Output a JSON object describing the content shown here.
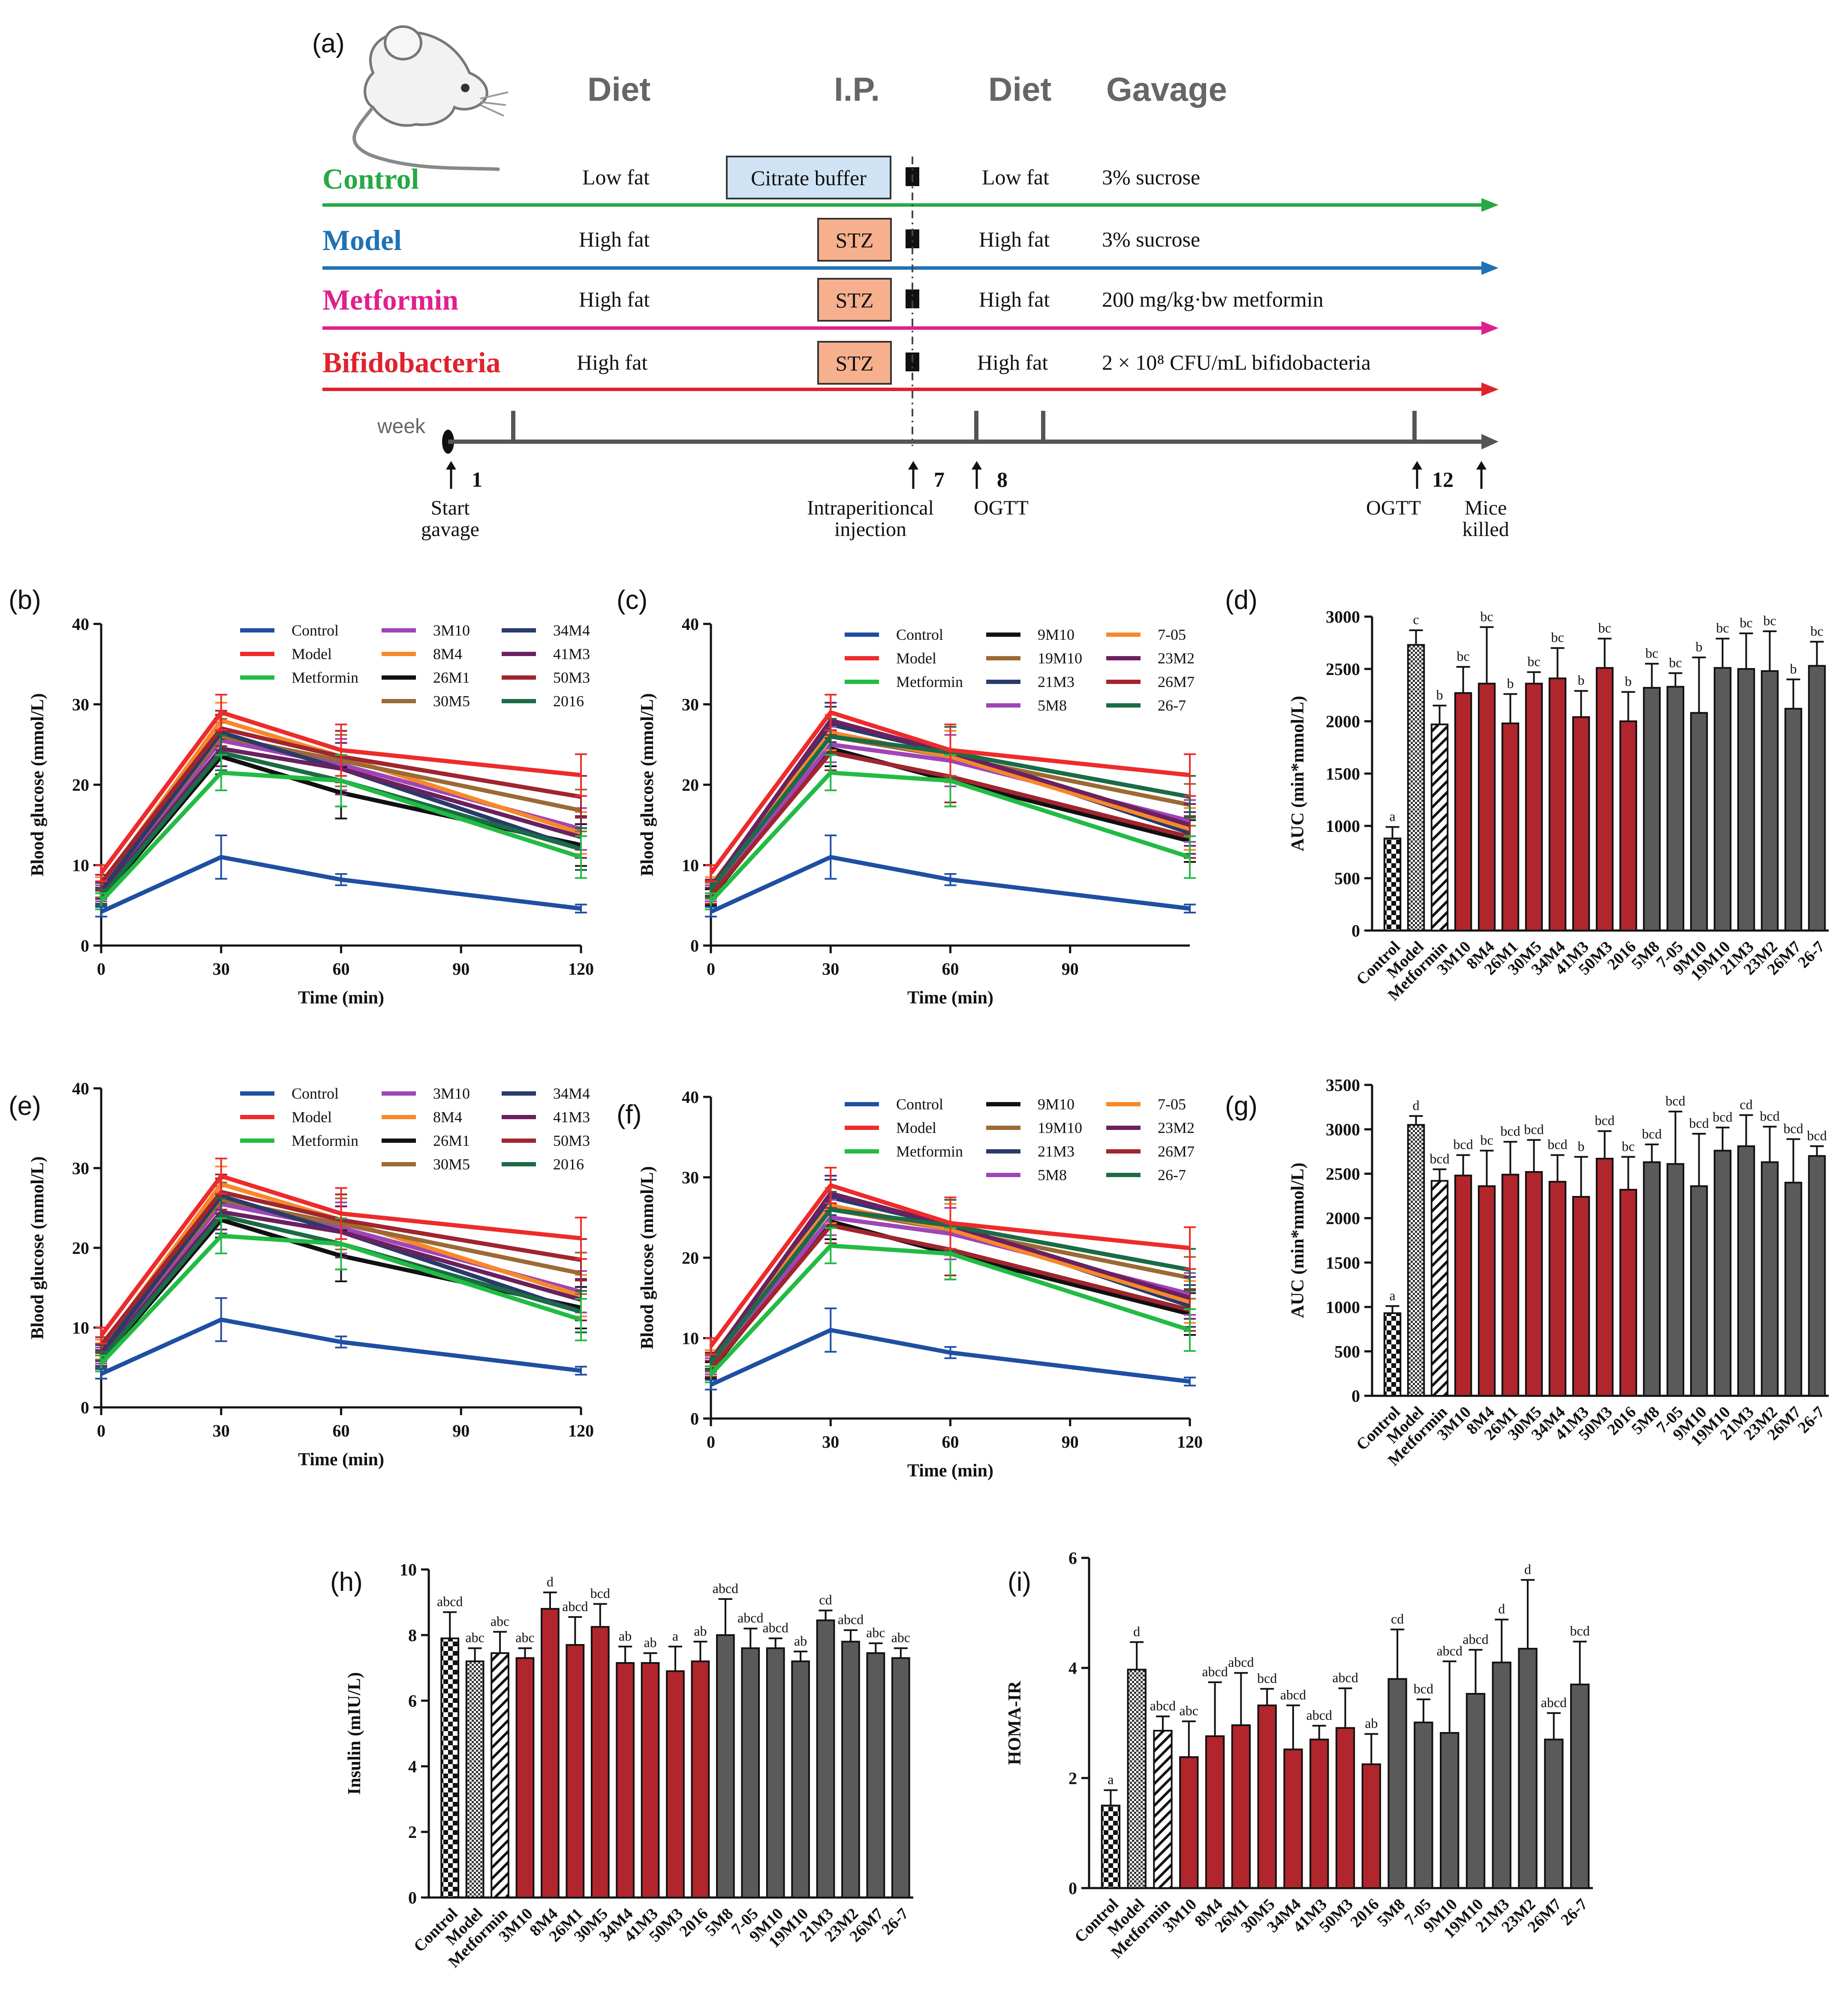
{
  "colors": {
    "control": "#1f4fa3",
    "model": "#ee2b2b",
    "metformin": "#22bb44",
    "bifido": "#e0222c",
    "model_row": "#1f72b5",
    "metformin_row": "#e0208e",
    "bar_red": "#b0262c",
    "bar_gray": "#5a5a5a",
    "stz": "#f7b08e",
    "citrate": "#cfe3f4"
  },
  "panel_a": {
    "label": "(a)",
    "headers": {
      "diet1": "Diet",
      "ip": "I.P.",
      "diet2": "Diet",
      "gavage": "Gavage"
    },
    "rows": [
      {
        "name": "Control",
        "diet1": "Low fat",
        "ip": "Citrate buffer",
        "diet2": "Low fat",
        "gavage": "3% sucrose"
      },
      {
        "name": "Model",
        "diet1": "High fat",
        "ip": "STZ",
        "diet2": "High fat",
        "gavage": "3% sucrose"
      },
      {
        "name": "Metformin",
        "diet1": "High fat",
        "ip": "STZ",
        "diet2": "High fat",
        "gavage": "200 mg/kg·bw metformin"
      },
      {
        "name": "Bifidobacteria",
        "diet1": "High fat",
        "ip": "STZ",
        "diet2": "High fat",
        "gavage": "2 × 10⁸ CFU/mL bifidobacteria"
      }
    ],
    "timeline": {
      "unit": "week",
      "marks": [
        {
          "num": "1",
          "label1": "Start",
          "label2": "gavage"
        },
        {
          "num": "7",
          "label1": "Intraperitioncal",
          "label2": "injection"
        },
        {
          "num": "8",
          "label1": "OGTT",
          "label2": ""
        },
        {
          "num": "12",
          "label1": "OGTT",
          "label2": ""
        },
        {
          "num": "",
          "label1": "Mice",
          "label2": "killed"
        }
      ]
    }
  },
  "chart_data": [
    {
      "panel": "(b)",
      "type": "line",
      "xlabel": "Time (min)",
      "ylabel": "Blood glucose (mmol/L)",
      "x": [
        0,
        30,
        60,
        120
      ],
      "xticks": [
        "0",
        "30",
        "60",
        "90",
        "120"
      ],
      "ylim": [
        0,
        40
      ],
      "yticks": [
        "0",
        "10",
        "20",
        "30",
        "40"
      ],
      "series": [
        {
          "name": "Control",
          "color": "#1f4fa3",
          "values": [
            4.2,
            11.0,
            8.2,
            4.6
          ]
        },
        {
          "name": "Model",
          "color": "#ee2b2b",
          "values": [
            9.0,
            29.0,
            24.3,
            21.2
          ]
        },
        {
          "name": "Metformin",
          "color": "#22bb44",
          "values": [
            5.5,
            21.5,
            20.5,
            11.0
          ]
        },
        {
          "name": "3M10",
          "color": "#a044b8",
          "values": [
            6.5,
            25.5,
            22.5,
            14.5
          ]
        },
        {
          "name": "8M4",
          "color": "#f7882a",
          "values": [
            7.5,
            28.0,
            23.5,
            14.0
          ]
        },
        {
          "name": "26M1",
          "color": "#111111",
          "values": [
            5.8,
            23.5,
            19.0,
            12.5
          ]
        },
        {
          "name": "30M5",
          "color": "#9b6a34",
          "values": [
            7.0,
            26.0,
            23.0,
            16.8
          ]
        },
        {
          "name": "34M4",
          "color": "#2a3a6a",
          "values": [
            6.8,
            26.5,
            22.0,
            12.0
          ]
        },
        {
          "name": "41M3",
          "color": "#6a2160",
          "values": [
            6.2,
            24.5,
            22.0,
            13.5
          ]
        },
        {
          "name": "50M3",
          "color": "#a0252e",
          "values": [
            7.8,
            27.0,
            23.5,
            18.5
          ]
        },
        {
          "name": "2016",
          "color": "#1a6b46",
          "values": [
            6.0,
            24.0,
            20.5,
            12.0
          ]
        }
      ]
    },
    {
      "panel": "(c)",
      "type": "line",
      "xlabel": "Time (min)",
      "ylabel": "Blood glucose (mmol/L)",
      "x": [
        0,
        30,
        60,
        120
      ],
      "xticks": [
        "0",
        "30",
        "60",
        "90"
      ],
      "ylim": [
        0,
        40
      ],
      "yticks": [
        "0",
        "10",
        "20",
        "30",
        "40"
      ],
      "series": [
        {
          "name": "Control",
          "color": "#1f4fa3",
          "values": [
            4.2,
            11.0,
            8.2,
            4.6
          ]
        },
        {
          "name": "Model",
          "color": "#ee2b2b",
          "values": [
            9.0,
            29.0,
            24.3,
            21.2
          ]
        },
        {
          "name": "Metformin",
          "color": "#22bb44",
          "values": [
            5.5,
            21.5,
            20.5,
            11.0
          ]
        },
        {
          "name": "9M10",
          "color": "#111111",
          "values": [
            6.0,
            24.5,
            20.5,
            13.0
          ]
        },
        {
          "name": "19M10",
          "color": "#9b6a34",
          "values": [
            6.8,
            26.0,
            23.5,
            17.5
          ]
        },
        {
          "name": "21M3",
          "color": "#2a3a6a",
          "values": [
            7.0,
            27.5,
            24.0,
            14.0
          ]
        },
        {
          "name": "5M8",
          "color": "#a044b8",
          "values": [
            6.5,
            25.0,
            23.0,
            15.5
          ]
        },
        {
          "name": "7-05",
          "color": "#f7882a",
          "values": [
            7.5,
            26.5,
            23.5,
            14.5
          ]
        },
        {
          "name": "23M2",
          "color": "#6a2160",
          "values": [
            7.2,
            28.0,
            24.0,
            15.0
          ]
        },
        {
          "name": "26M7",
          "color": "#a0252e",
          "values": [
            6.2,
            24.0,
            21.0,
            13.5
          ]
        },
        {
          "name": "26-7",
          "color": "#1a6b46",
          "values": [
            7.0,
            26.0,
            24.0,
            18.5
          ]
        }
      ]
    },
    {
      "panel": "(d)",
      "type": "bar",
      "ylabel": "AUC (min*mmol/L)",
      "ylim": [
        0,
        3000
      ],
      "yticks": [
        "0",
        "500",
        "1000",
        "1500",
        "2000",
        "2500",
        "3000"
      ],
      "categories": [
        "Control",
        "Model",
        "Metformin",
        "3M10",
        "8M4",
        "26M1",
        "30M5",
        "34M4",
        "41M3",
        "50M3",
        "2016",
        "5M8",
        "7-05",
        "9M10",
        "19M10",
        "21M3",
        "23M2",
        "26M7",
        "26-7"
      ],
      "values": [
        880,
        2730,
        1970,
        2270,
        2360,
        1980,
        2360,
        2410,
        2040,
        2510,
        2000,
        2320,
        2330,
        2080,
        2510,
        2500,
        2480,
        2120,
        2530
      ],
      "errors": [
        110,
        140,
        180,
        250,
        540,
        280,
        110,
        290,
        250,
        280,
        280,
        230,
        130,
        530,
        280,
        340,
        380,
        280,
        230
      ],
      "labels": [
        "a",
        "c",
        "b",
        "bc",
        "bc",
        "b",
        "bc",
        "bc",
        "b",
        "bc",
        "b",
        "bc",
        "bc",
        "b",
        "bc",
        "bc",
        "bc",
        "b",
        "bc"
      ]
    },
    {
      "panel": "(e)",
      "type": "line",
      "xlabel": "Time (min)",
      "ylabel": "Blood glucose (mmol/L)",
      "x": [
        0,
        30,
        60,
        120
      ],
      "xticks": [
        "0",
        "30",
        "60",
        "90",
        "120"
      ],
      "ylim": [
        0,
        40
      ],
      "yticks": [
        "0",
        "10",
        "20",
        "30",
        "40"
      ],
      "series": [
        {
          "name": "Control",
          "color": "#1f4fa3",
          "values": [
            4.2,
            11.0,
            8.2,
            4.6
          ]
        },
        {
          "name": "Model",
          "color": "#ee2b2b",
          "values": [
            9.0,
            29.0,
            24.3,
            21.2
          ]
        },
        {
          "name": "Metformin",
          "color": "#22bb44",
          "values": [
            5.5,
            21.5,
            20.5,
            11.0
          ]
        },
        {
          "name": "3M10",
          "color": "#a044b8",
          "values": [
            6.5,
            25.5,
            22.5,
            14.5
          ]
        },
        {
          "name": "8M4",
          "color": "#f7882a",
          "values": [
            7.5,
            28.0,
            23.5,
            14.0
          ]
        },
        {
          "name": "26M1",
          "color": "#111111",
          "values": [
            5.8,
            23.5,
            19.0,
            12.5
          ]
        },
        {
          "name": "30M5",
          "color": "#9b6a34",
          "values": [
            7.0,
            26.0,
            23.0,
            16.8
          ]
        },
        {
          "name": "34M4",
          "color": "#2a3a6a",
          "values": [
            6.8,
            26.5,
            22.0,
            12.0
          ]
        },
        {
          "name": "41M3",
          "color": "#6a2160",
          "values": [
            6.2,
            24.5,
            22.0,
            13.5
          ]
        },
        {
          "name": "50M3",
          "color": "#a0252e",
          "values": [
            7.8,
            27.0,
            23.5,
            18.5
          ]
        },
        {
          "name": "2016",
          "color": "#1a6b46",
          "values": [
            6.0,
            24.0,
            20.5,
            12.0
          ]
        }
      ]
    },
    {
      "panel": "(f)",
      "type": "line",
      "xlabel": "Time (min)",
      "ylabel": "Blood glucose (mmol/L)",
      "x": [
        0,
        30,
        60,
        120
      ],
      "xticks": [
        "0",
        "30",
        "60",
        "90",
        "120"
      ],
      "ylim": [
        0,
        40
      ],
      "yticks": [
        "0",
        "10",
        "20",
        "30",
        "40"
      ],
      "series": [
        {
          "name": "Control",
          "color": "#1f4fa3",
          "values": [
            4.2,
            11.0,
            8.2,
            4.6
          ]
        },
        {
          "name": "Model",
          "color": "#ee2b2b",
          "values": [
            9.0,
            29.0,
            24.3,
            21.2
          ]
        },
        {
          "name": "Metformin",
          "color": "#22bb44",
          "values": [
            5.5,
            21.5,
            20.5,
            11.0
          ]
        },
        {
          "name": "9M10",
          "color": "#111111",
          "values": [
            6.0,
            24.5,
            20.5,
            13.0
          ]
        },
        {
          "name": "19M10",
          "color": "#9b6a34",
          "values": [
            6.8,
            26.0,
            23.5,
            17.5
          ]
        },
        {
          "name": "21M3",
          "color": "#2a3a6a",
          "values": [
            7.0,
            27.5,
            24.0,
            14.0
          ]
        },
        {
          "name": "5M8",
          "color": "#a044b8",
          "values": [
            6.5,
            25.0,
            23.0,
            15.5
          ]
        },
        {
          "name": "7-05",
          "color": "#f7882a",
          "values": [
            7.5,
            26.5,
            23.5,
            14.5
          ]
        },
        {
          "name": "23M2",
          "color": "#6a2160",
          "values": [
            7.2,
            28.0,
            24.0,
            15.0
          ]
        },
        {
          "name": "26M7",
          "color": "#a0252e",
          "values": [
            6.2,
            24.0,
            21.0,
            13.5
          ]
        },
        {
          "name": "26-7",
          "color": "#1a6b46",
          "values": [
            7.0,
            26.0,
            24.0,
            18.5
          ]
        }
      ]
    },
    {
      "panel": "(g)",
      "type": "bar",
      "ylabel": "AUC (min*mmol/L)",
      "ylim": [
        0,
        3500
      ],
      "yticks": [
        "0",
        "500",
        "1000",
        "1500",
        "2000",
        "2500",
        "3000",
        "3500"
      ],
      "categories": [
        "Control",
        "Model",
        "Metformin",
        "3M10",
        "8M4",
        "26M1",
        "30M5",
        "34M4",
        "41M3",
        "50M3",
        "2016",
        "5M8",
        "7-05",
        "9M10",
        "19M10",
        "21M3",
        "23M2",
        "26M7",
        "26-7"
      ],
      "values": [
        930,
        3050,
        2420,
        2480,
        2360,
        2490,
        2520,
        2410,
        2240,
        2670,
        2320,
        2630,
        2610,
        2360,
        2760,
        2810,
        2630,
        2400,
        2700
      ],
      "errors": [
        80,
        100,
        130,
        230,
        400,
        370,
        360,
        300,
        450,
        310,
        370,
        200,
        590,
        590,
        260,
        350,
        400,
        490,
        110
      ],
      "labels": [
        "a",
        "d",
        "bcd",
        "bcd",
        "bc",
        "bcd",
        "bcd",
        "bcd",
        "b",
        "bcd",
        "bc",
        "bcd",
        "bcd",
        "bcd",
        "bcd",
        "cd",
        "bcd",
        "bcd",
        "bcd"
      ]
    },
    {
      "panel": "(h)",
      "type": "bar",
      "ylabel": "Insulin (mIU/L)",
      "ylim": [
        0,
        10
      ],
      "yticks": [
        "0",
        "2",
        "4",
        "6",
        "8",
        "10"
      ],
      "categories": [
        "Control",
        "Model",
        "Metformin",
        "3M10",
        "8M4",
        "26M1",
        "30M5",
        "34M4",
        "41M3",
        "50M3",
        "2016",
        "5M8",
        "7-05",
        "9M10",
        "19M10",
        "21M3",
        "23M2",
        "26M7",
        "26-7"
      ],
      "values": [
        7.9,
        7.2,
        7.45,
        7.3,
        8.8,
        7.7,
        8.25,
        7.15,
        7.15,
        6.9,
        7.2,
        8.0,
        7.6,
        7.6,
        7.2,
        8.45,
        7.8,
        7.45,
        7.3
      ],
      "errors": [
        0.8,
        0.4,
        0.65,
        0.3,
        0.5,
        0.85,
        0.7,
        0.5,
        0.3,
        0.75,
        0.6,
        1.1,
        0.6,
        0.3,
        0.3,
        0.3,
        0.35,
        0.3,
        0.3
      ],
      "labels": [
        "abcd",
        "abc",
        "abc",
        "abc",
        "d",
        "abcd",
        "bcd",
        "ab",
        "ab",
        "a",
        "ab",
        "abcd",
        "abcd",
        "abcd",
        "ab",
        "cd",
        "abcd",
        "abc",
        "abc"
      ]
    },
    {
      "panel": "(i)",
      "type": "bar",
      "ylabel": "HOMA-IR",
      "ylim": [
        0,
        6
      ],
      "yticks": [
        "0",
        "2",
        "4",
        "6"
      ],
      "categories": [
        "Control",
        "Model",
        "Metformin",
        "3M10",
        "8M4",
        "26M1",
        "30M5",
        "34M4",
        "41M3",
        "50M3",
        "2016",
        "5M8",
        "7-05",
        "9M10",
        "19M10",
        "21M3",
        "23M2",
        "26M7",
        "26-7"
      ],
      "values": [
        1.5,
        3.97,
        2.86,
        2.38,
        2.76,
        2.96,
        3.32,
        2.52,
        2.7,
        2.91,
        2.25,
        3.8,
        3.01,
        2.82,
        3.53,
        4.1,
        4.35,
        2.7,
        3.7
      ],
      "errors": [
        0.28,
        0.5,
        0.26,
        0.65,
        0.98,
        0.95,
        0.3,
        0.8,
        0.25,
        0.72,
        0.55,
        0.9,
        0.42,
        1.3,
        0.8,
        0.78,
        1.25,
        0.48,
        0.78
      ],
      "labels": [
        "a",
        "d",
        "abcd",
        "abc",
        "abcd",
        "abcd",
        "bcd",
        "abcd",
        "abcd",
        "abcd",
        "ab",
        "cd",
        "bcd",
        "abcd",
        "abcd",
        "d",
        "d",
        "abcd",
        "bcd"
      ]
    }
  ]
}
